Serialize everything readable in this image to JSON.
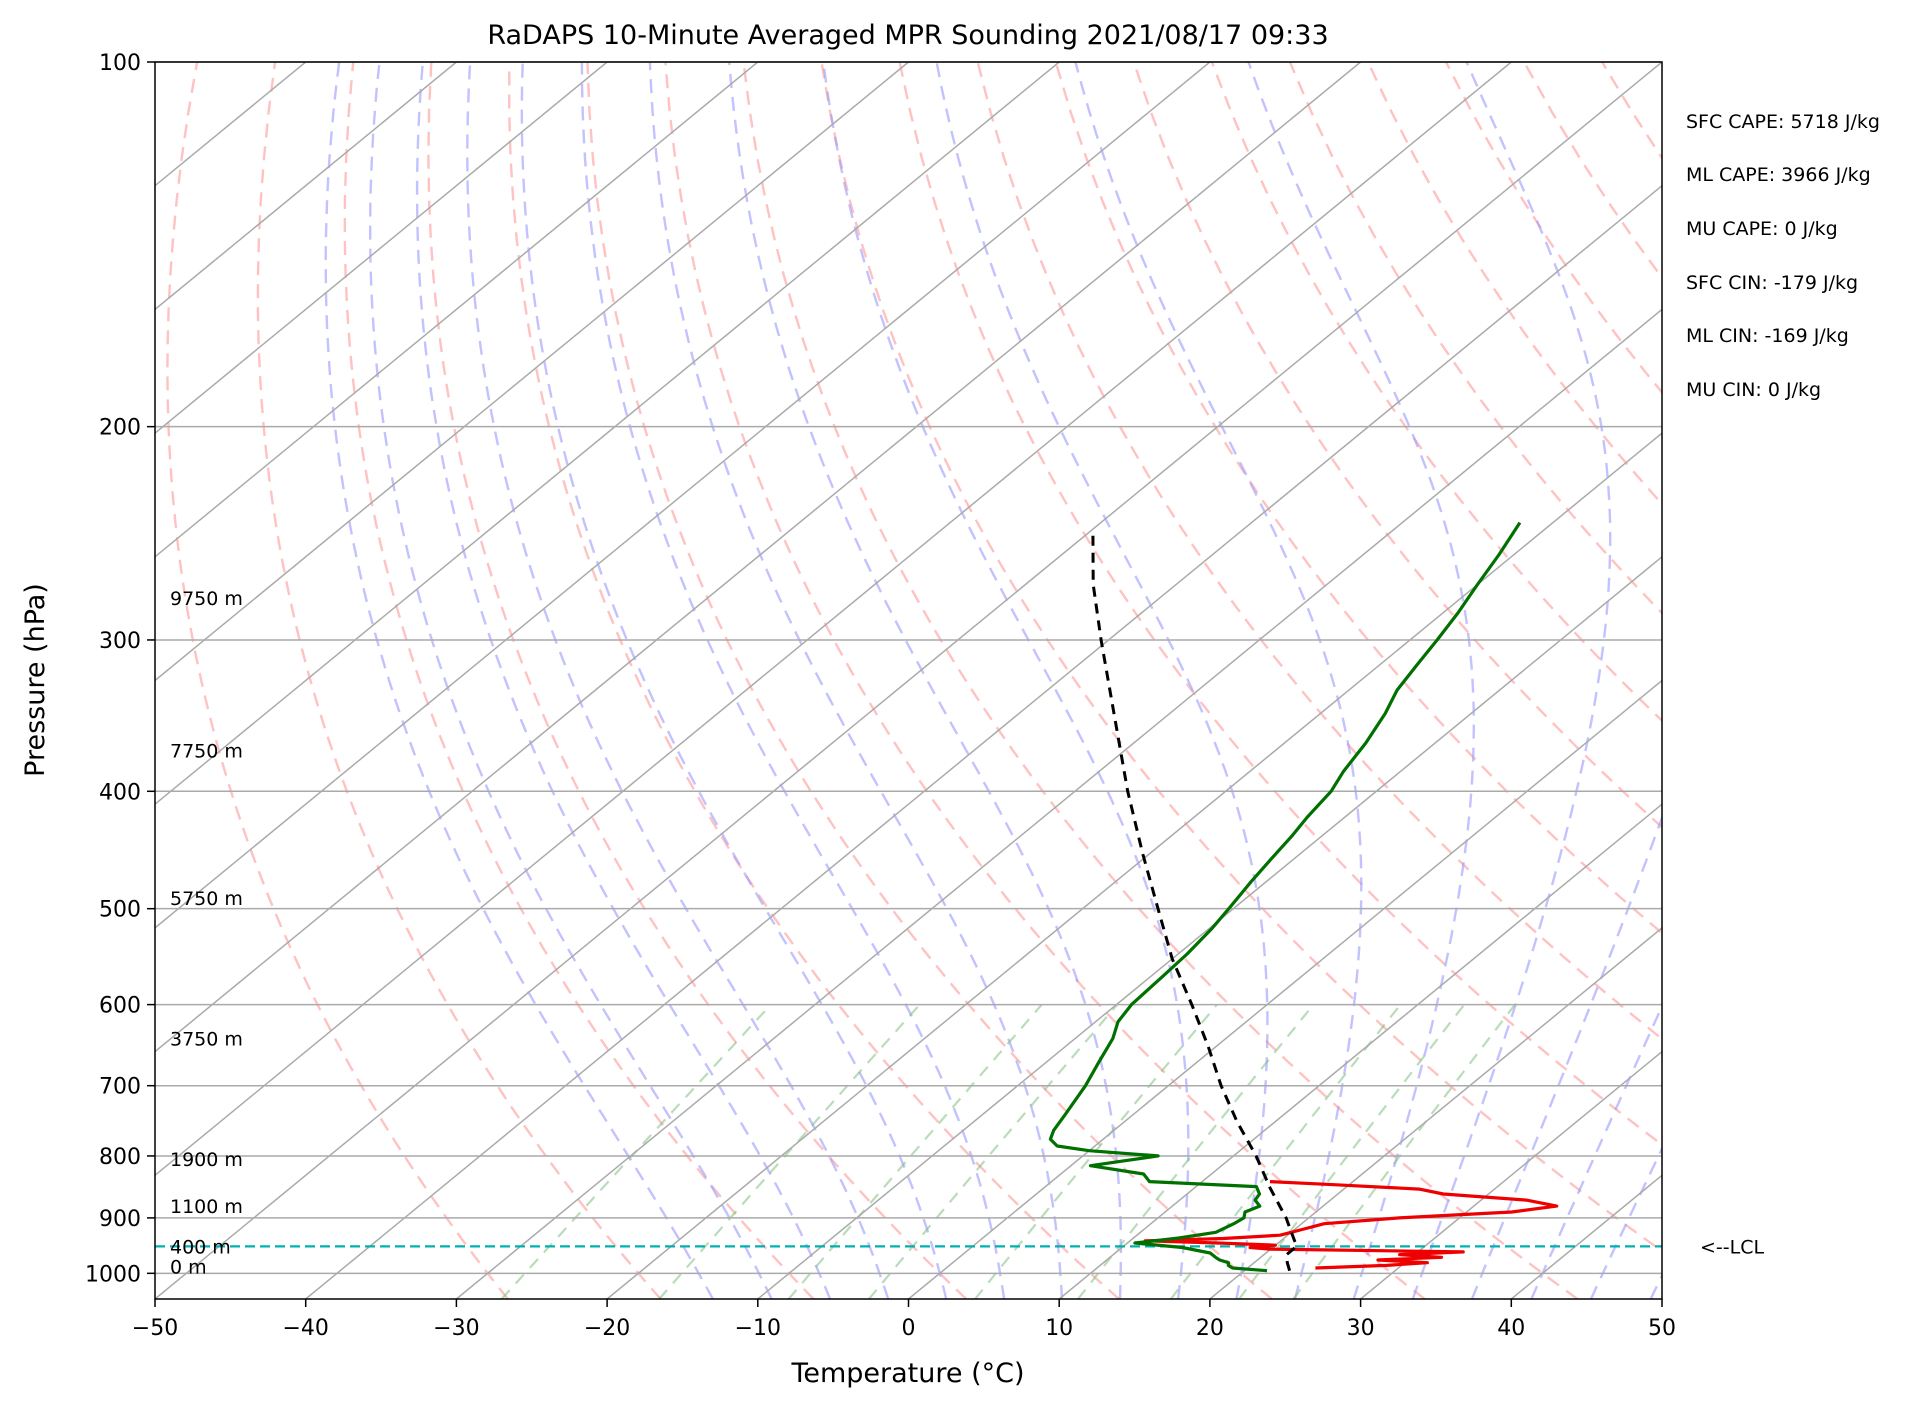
{
  "chart_data": {
    "type": "line",
    "title": "RaDAPS 10-Minute Averaged MPR Sounding 2021/08/17 09:33",
    "xlabel": "Temperature (°C)",
    "ylabel": "Pressure (hPa)",
    "x_scale": "skew-T",
    "y_scale": "log",
    "xlim": [
      -50,
      50
    ],
    "ylim": [
      1050,
      100
    ],
    "x_ticks": [
      -50,
      -40,
      -30,
      -20,
      -10,
      0,
      10,
      20,
      30,
      40,
      50
    ],
    "y_ticks": [
      100,
      200,
      300,
      400,
      500,
      600,
      700,
      800,
      900,
      1000
    ],
    "grid": true,
    "series": [
      {
        "color": "#ee0000",
        "points": [
          [
            990,
            24.5
          ],
          [
            985,
            29
          ],
          [
            980,
            31.5
          ],
          [
            975,
            28
          ],
          [
            970,
            32
          ],
          [
            965,
            29
          ],
          [
            960,
            33
          ],
          [
            955,
            20
          ],
          [
            952,
            18.5
          ],
          [
            948,
            20
          ],
          [
            944,
            16
          ],
          [
            940,
            11
          ],
          [
            936,
            16
          ],
          [
            930,
            19.5
          ],
          [
            920,
            20.5
          ],
          [
            910,
            21.5
          ],
          [
            900,
            26
          ],
          [
            890,
            33
          ],
          [
            880,
            35.5
          ],
          [
            870,
            33
          ],
          [
            860,
            27
          ],
          [
            852,
            25
          ],
          [
            845,
            19
          ],
          [
            840,
            14.5
          ]
        ]
      },
      {
        "color": "#007000",
        "points": [
          [
            995,
            21.5
          ],
          [
            990,
            19
          ],
          [
            985,
            18.5
          ],
          [
            980,
            18.3
          ],
          [
            975,
            17.5
          ],
          [
            970,
            17
          ],
          [
            962,
            16.3
          ],
          [
            952,
            14
          ],
          [
            944,
            10.5
          ],
          [
            935,
            13
          ],
          [
            925,
            15
          ],
          [
            910,
            15.5
          ],
          [
            900,
            15.7
          ],
          [
            890,
            15.3
          ],
          [
            880,
            15.8
          ],
          [
            870,
            15
          ],
          [
            860,
            14.8
          ],
          [
            848,
            14
          ],
          [
            840,
            6.5
          ],
          [
            828,
            5.5
          ],
          [
            815,
            1.3
          ],
          [
            808,
            3
          ],
          [
            800,
            5
          ],
          [
            792,
            0
          ],
          [
            785,
            -2.5
          ],
          [
            775,
            -3.5
          ],
          [
            762,
            -4
          ],
          [
            740,
            -4.5
          ],
          [
            700,
            -5.5
          ],
          [
            670,
            -6.5
          ],
          [
            640,
            -7.5
          ],
          [
            620,
            -8.5
          ],
          [
            600,
            -9
          ],
          [
            570,
            -9.2
          ],
          [
            545,
            -9.4
          ],
          [
            520,
            -9.8
          ],
          [
            500,
            -10.3
          ],
          [
            475,
            -11
          ],
          [
            455,
            -11.5
          ],
          [
            435,
            -12
          ],
          [
            420,
            -12.5
          ],
          [
            400,
            -13
          ],
          [
            385,
            -13.8
          ],
          [
            365,
            -14.6
          ],
          [
            345,
            -15.7
          ],
          [
            330,
            -16.8
          ],
          [
            315,
            -17.5
          ],
          [
            300,
            -18.2
          ],
          [
            285,
            -19
          ],
          [
            270,
            -20
          ],
          [
            255,
            -21
          ],
          [
            240,
            -22.2
          ]
        ]
      },
      {
        "color": "#000000",
        "dashed": true,
        "points": [
          [
            995,
            23
          ],
          [
            980,
            22.2
          ],
          [
            965,
            21.5
          ],
          [
            950,
            21.5
          ],
          [
            900,
            18.5
          ],
          [
            850,
            15
          ],
          [
            800,
            11.5
          ],
          [
            750,
            7.5
          ],
          [
            700,
            3.5
          ],
          [
            650,
            -0.5
          ],
          [
            600,
            -5
          ],
          [
            550,
            -10
          ],
          [
            500,
            -15
          ],
          [
            450,
            -20.5
          ],
          [
            400,
            -26.5
          ],
          [
            350,
            -33
          ],
          [
            300,
            -40.5
          ],
          [
            270,
            -45.5
          ],
          [
            243,
            -50
          ]
        ]
      }
    ],
    "height_labels": [
      {
        "p": 987,
        "text": "0 m"
      },
      {
        "p": 950,
        "text": "400 m"
      },
      {
        "p": 880,
        "text": "1100 m"
      },
      {
        "p": 805,
        "text": "1900 m"
      },
      {
        "p": 640,
        "text": "3750 m"
      },
      {
        "p": 490,
        "text": "5750 m"
      },
      {
        "p": 370,
        "text": "7750 m"
      },
      {
        "p": 277,
        "text": "9750 m"
      }
    ],
    "lcl": {
      "p": 950,
      "label": "<--LCL",
      "color": "#00b0b0"
    },
    "indices": [
      "SFC CAPE: 5718 J/kg",
      "ML CAPE: 3966 J/kg",
      "MU CAPE: 0 J/kg",
      "SFC CIN: -179 J/kg",
      "ML CIN: -169 J/kg",
      "MU CIN: 0 J/kg"
    ]
  }
}
